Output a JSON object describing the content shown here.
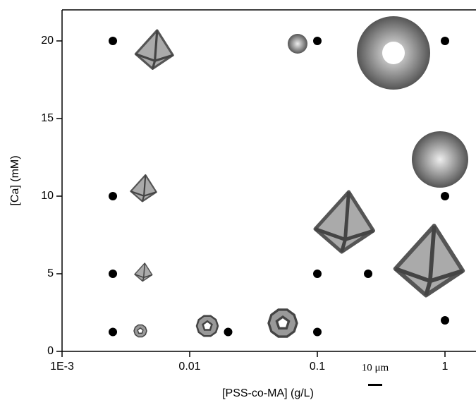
{
  "chart_data": {
    "type": "scatter",
    "xlabel": "[PSS-co-MA] (g/L)",
    "ylabel": "[Ca] (mM)",
    "x": [
      0.0025,
      0.0025,
      0.0025,
      0.0025,
      0.02,
      0.1,
      0.1,
      0.1,
      0.25,
      1,
      1,
      1
    ],
    "y": [
      20,
      10,
      5,
      1.25,
      1.25,
      20,
      5,
      1.25,
      5,
      20,
      10,
      2
    ],
    "color": "#000000",
    "xscale": "log",
    "xlim": [
      0.001,
      1.75
    ],
    "ylim": [
      0,
      22
    ],
    "xticks": [
      {
        "value": 0.001,
        "label": "1E-3"
      },
      0.01,
      0.1,
      1
    ],
    "yticks": [
      0,
      5,
      10,
      15,
      20
    ],
    "annotations": [
      "10 μm"
    ]
  }
}
